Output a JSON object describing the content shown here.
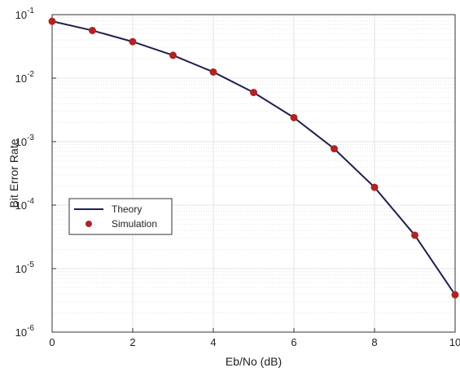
{
  "chart_data": {
    "type": "line",
    "xlabel": "Eb/No (dB)",
    "ylabel": "Bit Error Rate",
    "xlim": [
      0,
      10
    ],
    "ylim": [
      1e-06,
      0.1
    ],
    "yscale": "log",
    "grid": true,
    "minor_grid": true,
    "legend_position": "left",
    "x_ticks": [
      "0",
      "2",
      "4",
      "6",
      "8",
      "10"
    ],
    "y_ticks": [
      {
        "base": "10",
        "exp": "-6"
      },
      {
        "base": "10",
        "exp": "-5"
      },
      {
        "base": "10",
        "exp": "-4"
      },
      {
        "base": "10",
        "exp": "-3"
      },
      {
        "base": "10",
        "exp": "-2"
      },
      {
        "base": "10",
        "exp": "-1"
      }
    ],
    "series": [
      {
        "name": "Theory",
        "style": "line",
        "color": "#1f1f4f",
        "x": [
          0,
          1,
          2,
          3,
          4,
          5,
          6,
          7,
          8,
          9,
          10
        ],
        "y": [
          0.0786,
          0.0563,
          0.0375,
          0.0229,
          0.0125,
          0.00595,
          0.00239,
          0.000773,
          0.000191,
          3.36e-05,
          3.87e-06
        ]
      },
      {
        "name": "Simulation",
        "style": "markers",
        "color": "#b22222",
        "x": [
          0,
          1,
          2,
          3,
          4,
          5,
          6,
          7,
          8,
          9,
          10
        ],
        "y": [
          0.0786,
          0.0563,
          0.0375,
          0.0229,
          0.0125,
          0.00595,
          0.00239,
          0.000773,
          0.000191,
          3.36e-05,
          3.87e-06
        ]
      }
    ]
  }
}
